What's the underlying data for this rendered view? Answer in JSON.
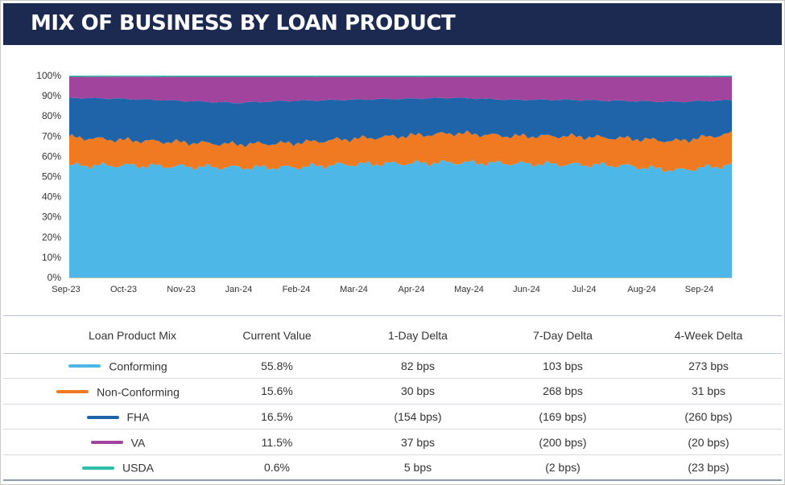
{
  "header": {
    "title": "MIX OF BUSINESS BY LOAN PRODUCT"
  },
  "chart_data": {
    "type": "area",
    "stacked": true,
    "percent": true,
    "title": "",
    "xlabel": "",
    "ylabel": "",
    "ylim": [
      0,
      100
    ],
    "y_ticks": [
      "0%",
      "10%",
      "20%",
      "30%",
      "40%",
      "50%",
      "60%",
      "70%",
      "80%",
      "90%",
      "100%"
    ],
    "x_ticks": [
      "Sep-23",
      "Oct-23",
      "Nov-23",
      "Jan-24",
      "Feb-24",
      "Mar-24",
      "Apr-24",
      "May-24",
      "Jun-24",
      "Jul-24",
      "Aug-24",
      "Sep-24"
    ],
    "x": [
      "Sep-23",
      "Oct-23",
      "Nov-23",
      "Dec-23",
      "Jan-24",
      "Feb-24",
      "Mar-24",
      "Apr-24",
      "May-24",
      "Jun-24",
      "Jul-24",
      "Aug-24",
      "Sep-24"
    ],
    "series": [
      {
        "name": "Conforming",
        "color": "#4db8e8",
        "values": [
          55.5,
          55.5,
          55.0,
          54.5,
          54.5,
          56.0,
          56.5,
          57.0,
          56.5,
          56.0,
          55.5,
          53.0,
          55.8
        ]
      },
      {
        "name": "Non-Conforming",
        "color": "#f07a22",
        "values": [
          14.0,
          12.5,
          12.0,
          11.5,
          12.0,
          12.5,
          13.5,
          14.5,
          13.5,
          14.0,
          13.5,
          14.5,
          15.6
        ]
      },
      {
        "name": "FHA",
        "color": "#1f64a8",
        "values": [
          19.5,
          20.5,
          20.5,
          20.5,
          21.0,
          19.5,
          18.5,
          17.5,
          18.0,
          18.0,
          18.5,
          19.5,
          16.5
        ]
      },
      {
        "name": "VA",
        "color": "#a0449e",
        "values": [
          10.4,
          11.0,
          11.9,
          12.9,
          11.9,
          11.4,
          10.9,
          10.4,
          11.4,
          11.4,
          11.9,
          12.4,
          11.5
        ]
      },
      {
        "name": "USDA",
        "color": "#2bbfa8",
        "values": [
          0.6,
          0.5,
          0.6,
          0.6,
          0.6,
          0.6,
          0.6,
          0.6,
          0.6,
          0.6,
          0.6,
          0.6,
          0.6
        ]
      }
    ]
  },
  "table": {
    "headers": [
      "Loan Product Mix",
      "Current Value",
      "1-Day Delta",
      "7-Day Delta",
      "4-Week Delta"
    ],
    "rows": [
      {
        "product": "Conforming",
        "color": "#4db8e8",
        "current": "55.8%",
        "d1": "82 bps",
        "d7": "103 bps",
        "w4": "273 bps"
      },
      {
        "product": "Non-Conforming",
        "color": "#f07a22",
        "current": "15.6%",
        "d1": "30 bps",
        "d7": "268 bps",
        "w4": "31 bps"
      },
      {
        "product": "FHA",
        "color": "#1f64a8",
        "current": "16.5%",
        "d1": "(154 bps)",
        "d7": "(169 bps)",
        "w4": "(260 bps)"
      },
      {
        "product": "VA",
        "color": "#a0449e",
        "current": "11.5%",
        "d1": "37 bps",
        "d7": "(200 bps)",
        "w4": "(20 bps)"
      },
      {
        "product": "USDA",
        "color": "#2bbfa8",
        "current": "0.6%",
        "d1": "5 bps",
        "d7": "(2 bps)",
        "w4": "(23 bps)"
      }
    ]
  }
}
